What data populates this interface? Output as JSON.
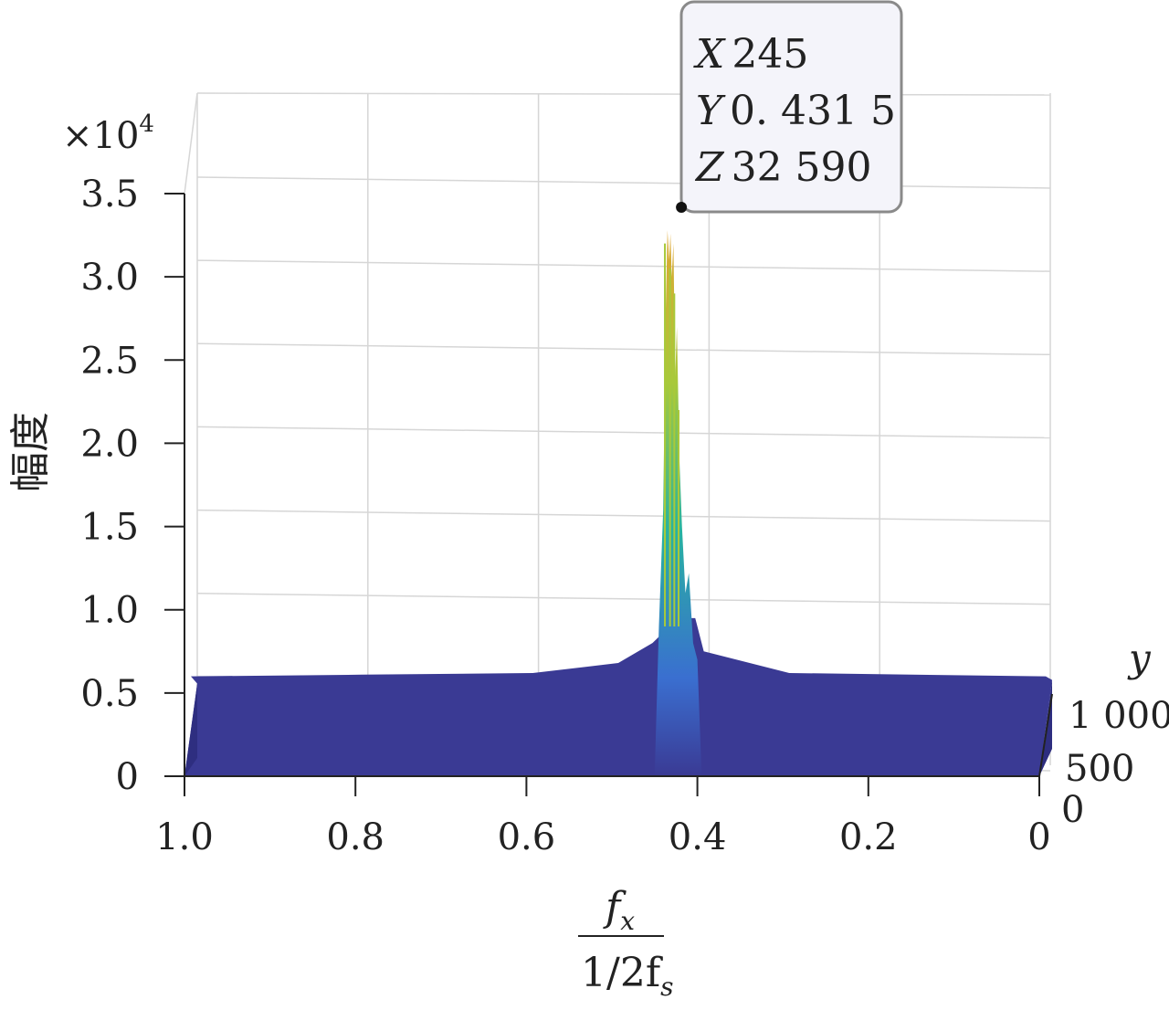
{
  "chart_data": {
    "type": "surface",
    "ylabel": "幅度",
    "exponent": "×10",
    "exponent_power": "4",
    "xlabel_num": "f",
    "xlabel_num_sub": "x",
    "xlabel_den": "1/2f",
    "xlabel_den_sub": "s",
    "zlabel": "y",
    "x_axis": {
      "reversed": true,
      "lim": [
        0,
        1.0
      ],
      "ticks": [
        "1.0",
        "0.8",
        "0.6",
        "0.4",
        "0.2",
        "0"
      ]
    },
    "y_axis": {
      "lim": [
        0,
        3.5
      ],
      "ticks": [
        "0",
        "0.5",
        "1.0",
        "1.5",
        "2.0",
        "2.5",
        "3.0",
        "3.5"
      ],
      "tick_values": [
        0,
        0.5,
        1.0,
        1.5,
        2.0,
        2.5,
        3.0,
        3.5
      ]
    },
    "depth_axis": {
      "ticks": [
        "0",
        "500",
        "1 000"
      ]
    },
    "surface_profile": [
      {
        "x": 1.0,
        "amp": 0.6
      },
      {
        "x": 0.8,
        "amp": 0.61
      },
      {
        "x": 0.6,
        "amp": 0.62
      },
      {
        "x": 0.5,
        "amp": 0.68
      },
      {
        "x": 0.46,
        "amp": 0.8
      },
      {
        "x": 0.44,
        "amp": 0.9
      },
      {
        "x": 0.433,
        "amp": 3.3
      },
      {
        "x": 0.4315,
        "amp": 3.259
      },
      {
        "x": 0.43,
        "amp": 3.1
      },
      {
        "x": 0.425,
        "amp": 2.1
      },
      {
        "x": 0.42,
        "amp": 1.3
      },
      {
        "x": 0.41,
        "amp": 1.2
      },
      {
        "x": 0.4,
        "amp": 0.75
      },
      {
        "x": 0.3,
        "amp": 0.62
      },
      {
        "x": 0.0,
        "amp": 0.6
      }
    ],
    "datatip": {
      "x_label": "X",
      "x_value": "245",
      "y_label": "Y",
      "y_value": "0. 431 5",
      "z_label": "Z",
      "z_value": "32 590",
      "point_x": 0.4315,
      "point_amp": 3.259
    },
    "grid": true,
    "colors": {
      "base": "#3a3a94",
      "low": "#3a6fd0",
      "mid": "#27b3a0",
      "high": "#a8c93a",
      "top": "#e0a532"
    }
  }
}
